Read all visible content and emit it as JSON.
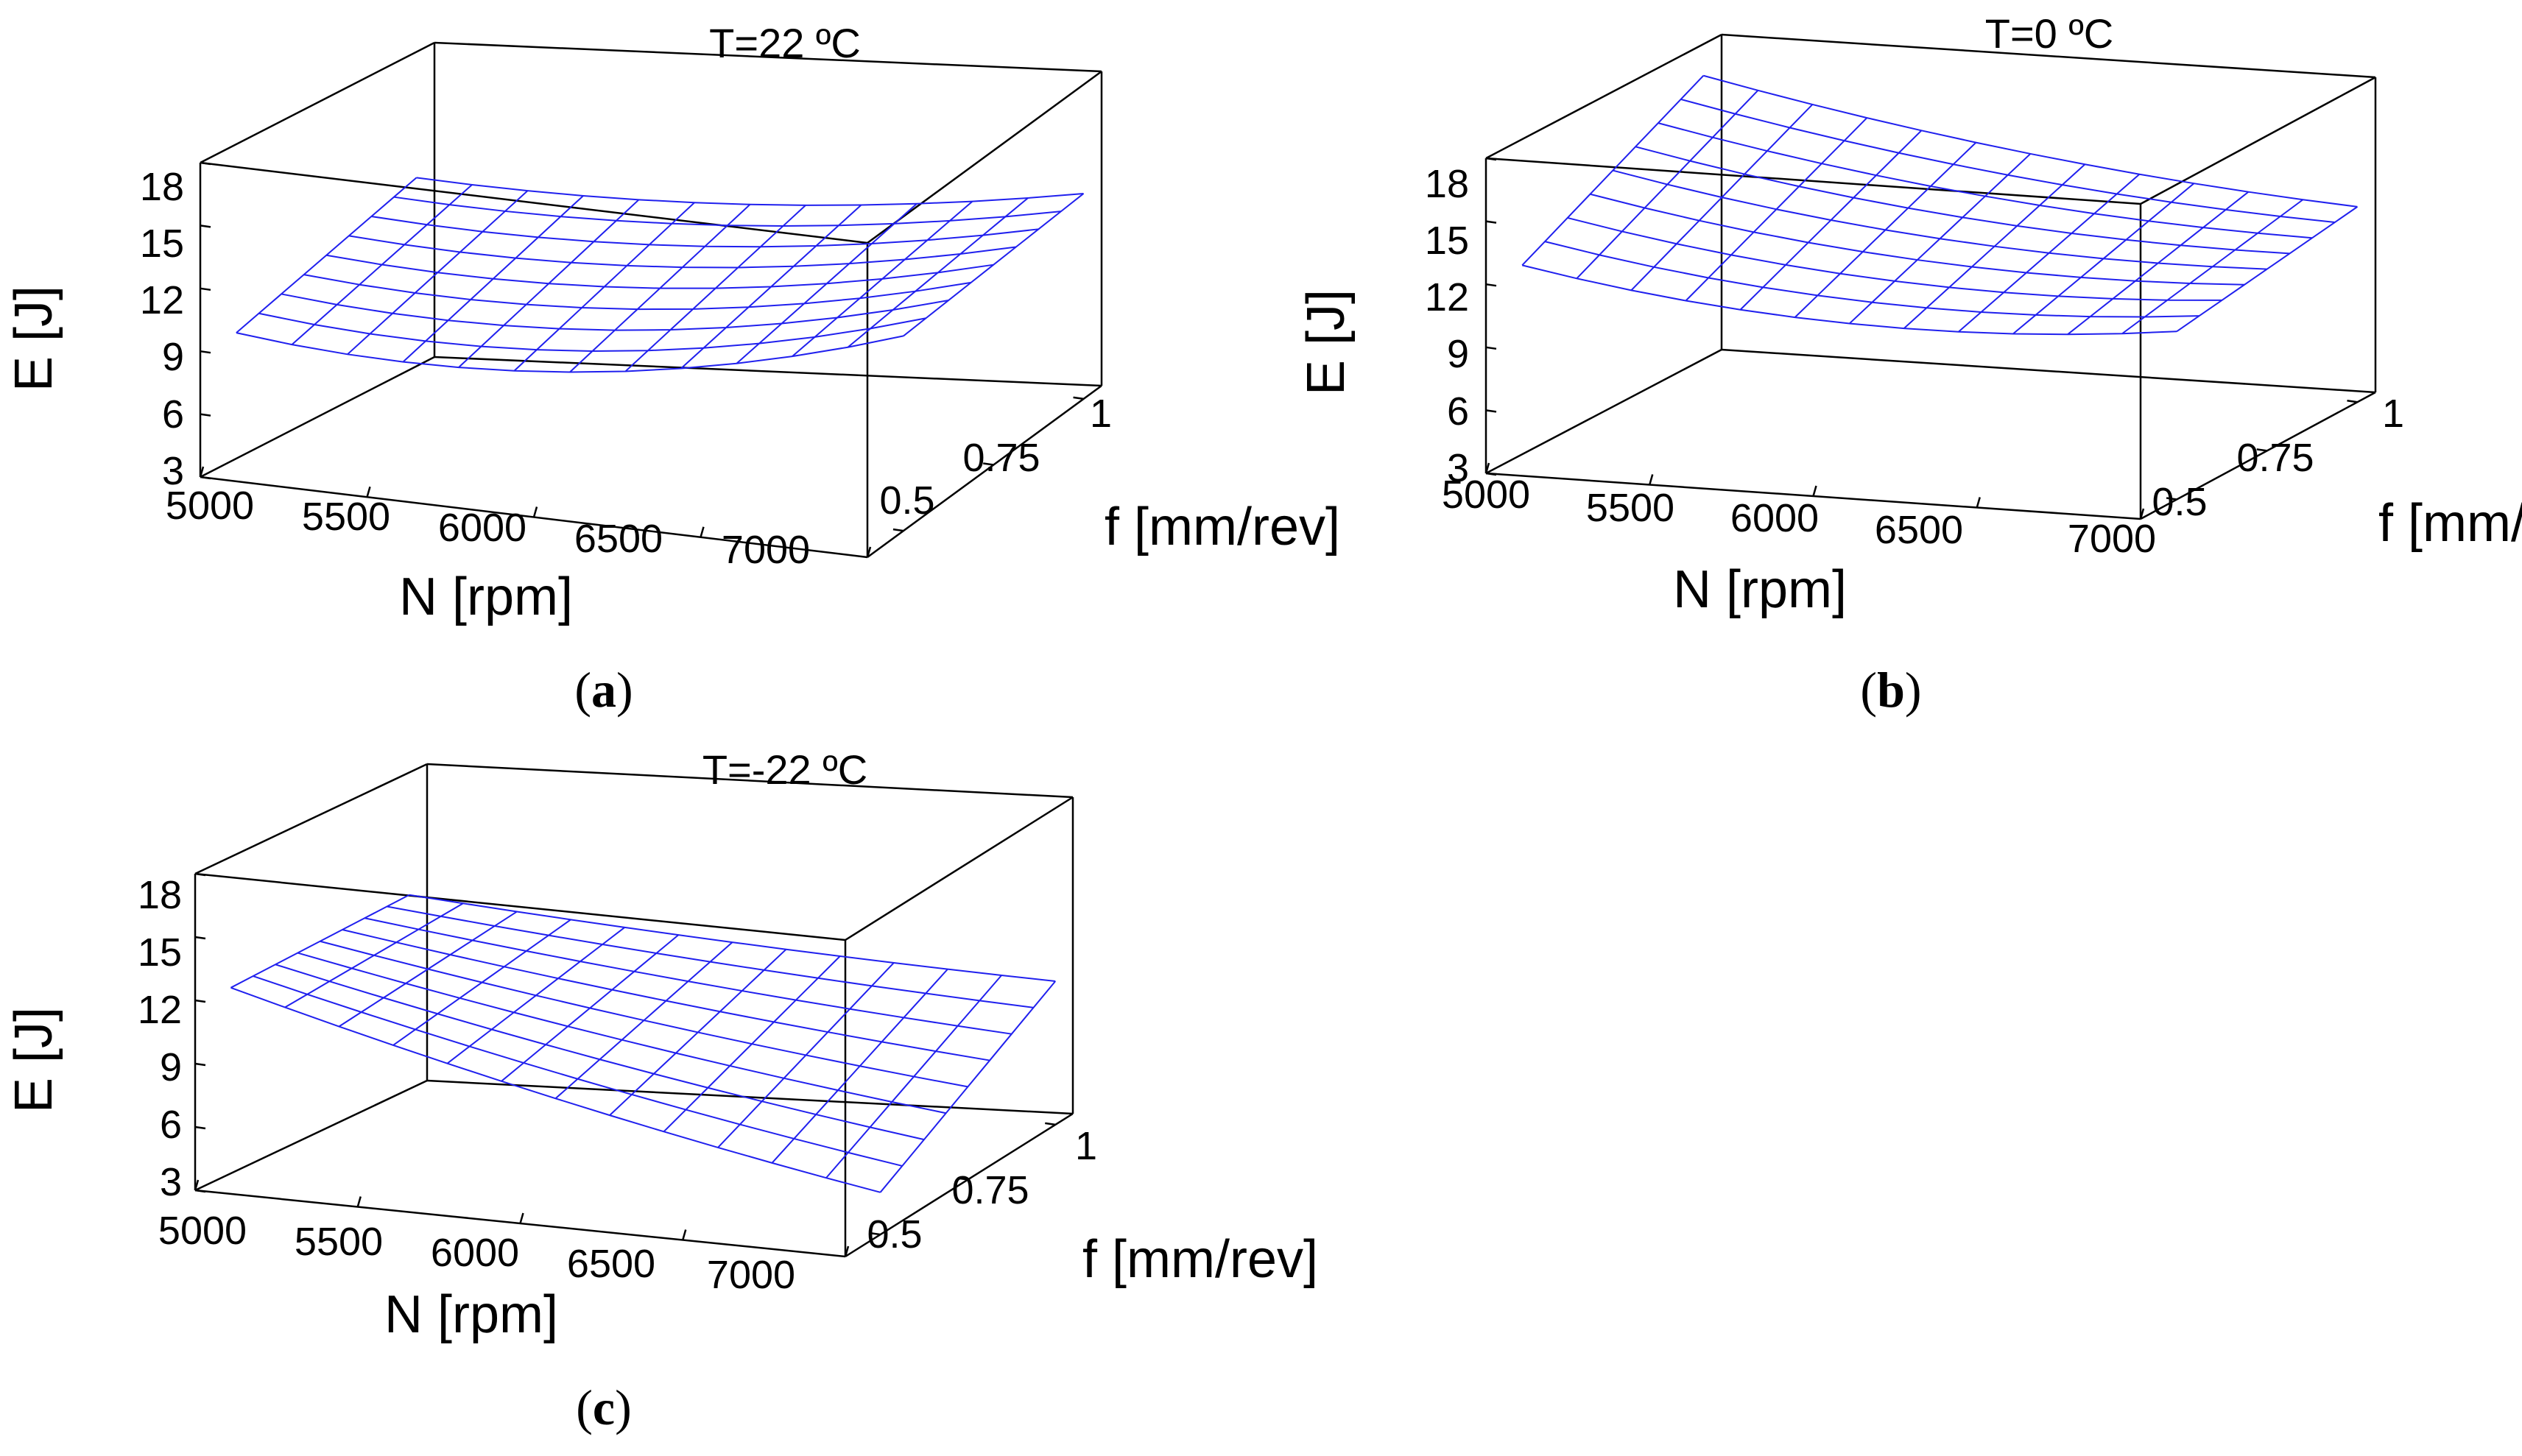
{
  "figure": {
    "mesh_color": "#2020ee",
    "axis_color": "#000000"
  },
  "chart_data": [
    {
      "type": "surface",
      "panel_label": "a",
      "title": "T=22 ºC",
      "xlabel": "N [rpm]",
      "ylabel": "f [mm/rev]",
      "zlabel": "E [J]",
      "x_ticks": [
        "5000",
        "5500",
        "6000",
        "6500",
        "7000"
      ],
      "y_ticks": [
        "0.5",
        "0.75",
        "1"
      ],
      "z_ticks": [
        "3",
        "6",
        "9",
        "12",
        "15",
        "18"
      ],
      "xlim": [
        5000,
        7000
      ],
      "ylim": [
        0.4,
        1.05
      ],
      "zlim": [
        3,
        18
      ],
      "corners": {
        "x0y0": 9.0,
        "x1y0": 12.3,
        "x0y1": 12.0,
        "x1y1": 12.8
      },
      "curvature": 1.8
    },
    {
      "type": "surface",
      "panel_label": "b",
      "title": "T=0 ºC",
      "xlabel": "N [rpm]",
      "ylabel": "f [mm/rev]",
      "zlabel": "E [J]",
      "x_ticks": [
        "5000",
        "5500",
        "6000",
        "6500",
        "7000"
      ],
      "y_ticks": [
        "0.5",
        "0.75",
        "1"
      ],
      "z_ticks": [
        "3",
        "6",
        "9",
        "12",
        "15",
        "18"
      ],
      "xlim": [
        5000,
        7000
      ],
      "ylim": [
        0.4,
        1.05
      ],
      "zlim": [
        3,
        18
      ],
      "corners": {
        "x0y0": 12.0,
        "x1y0": 11.0,
        "x0y1": 16.5,
        "x1y1": 12.3
      },
      "curvature": 1.2
    },
    {
      "type": "surface",
      "panel_label": "c",
      "title": "T=-22 ºC",
      "xlabel": "N [rpm]",
      "ylabel": "f [mm/rev]",
      "zlabel": "E [J]",
      "x_ticks": [
        "5000",
        "5500",
        "6000",
        "6500",
        "7000"
      ],
      "y_ticks": [
        "0.5",
        "0.75",
        "1"
      ],
      "z_ticks": [
        "3",
        "6",
        "9",
        "12",
        "15",
        "18"
      ],
      "xlim": [
        5000,
        7000
      ],
      "ylim": [
        0.4,
        1.05
      ],
      "zlim": [
        3,
        18
      ],
      "corners": {
        "x0y0": 11.8,
        "x1y0": 5.0,
        "x0y1": 12.2,
        "x1y1": 9.8
      },
      "curvature": 0.4
    }
  ]
}
